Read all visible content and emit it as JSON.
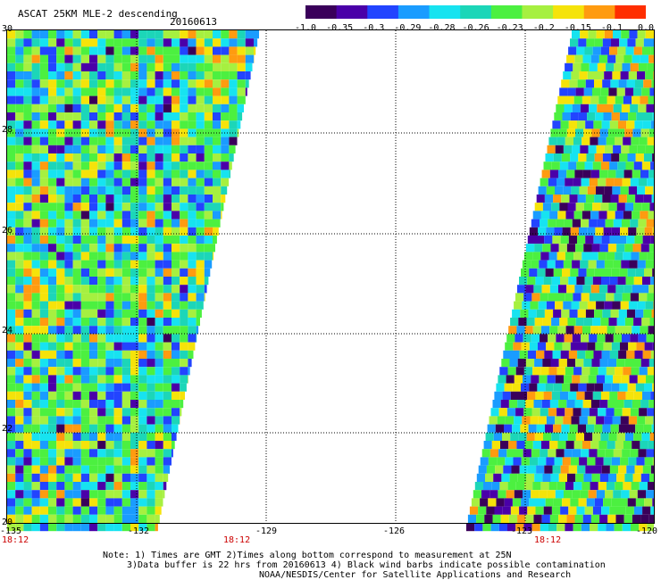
{
  "header": {
    "title": "ASCAT 25KM MLE-2 descending",
    "date": "20160613"
  },
  "colorbar": {
    "ticks": [
      "-1.0",
      "-0.35",
      "-0.3",
      "-0.29",
      "-0.28",
      "-0.26",
      "-0.23",
      "-0.2",
      "-0.15",
      "-0.1",
      "0.0"
    ],
    "colors": [
      "#3a005a",
      "#4a00a8",
      "#2244ff",
      "#1a9cff",
      "#17e3f0",
      "#1cd6b8",
      "#4cf040",
      "#a6f040",
      "#f5e30a",
      "#ff9b10",
      "#ff2e00"
    ]
  },
  "map": {
    "lat_ticks": [
      "30",
      "28",
      "26",
      "24",
      "22",
      "20"
    ],
    "lon_ticks": [
      "-135",
      "-132",
      "-129",
      "-126",
      "-123",
      "-120"
    ],
    "times": [
      "18:12",
      "18:12",
      "18:12"
    ]
  },
  "footer": {
    "note_line1": "Note: 1) Times are GMT 2)Times along bottom correspond to measurement at 25N",
    "note_line2": "3)Data buffer is 22 hrs from 20160613 4) Black wind barbs indicate possible contamination",
    "credit": "NOAA/NESDIS/Center for Satellite Applications and Research"
  }
}
